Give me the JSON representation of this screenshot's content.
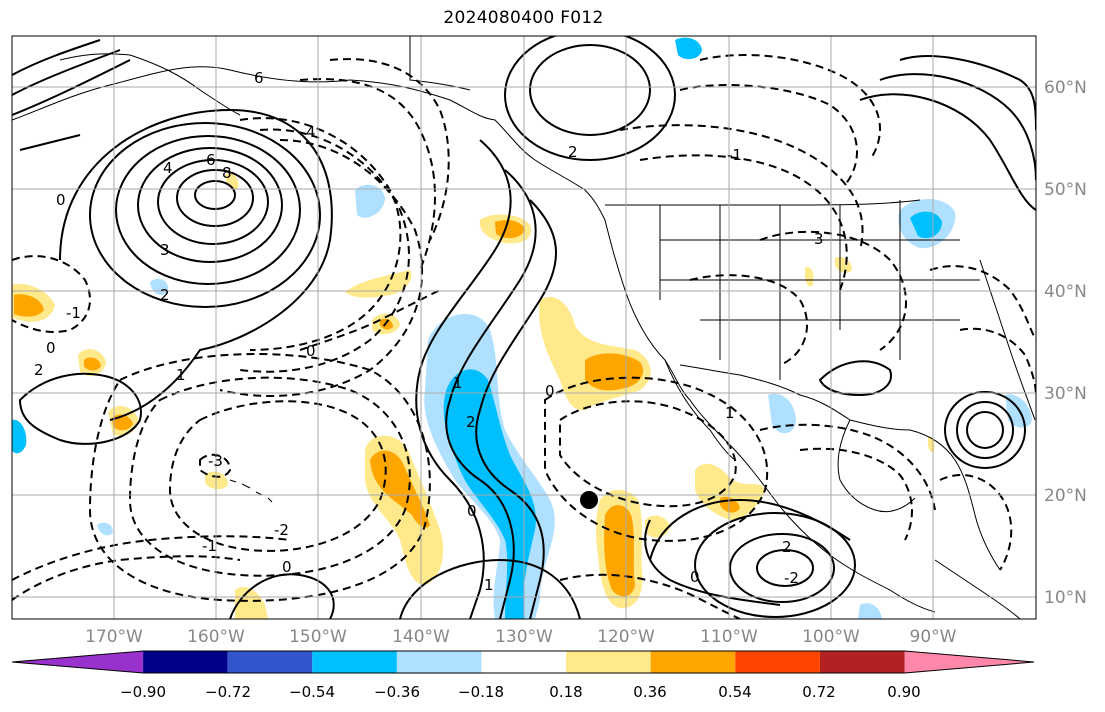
{
  "title": "2024080400 F012",
  "map": {
    "lat_labels": [
      "60°N",
      "50°N",
      "40°N",
      "30°N",
      "20°N",
      "10°N"
    ],
    "lon_labels": [
      "170°W",
      "160°W",
      "150°W",
      "140°W",
      "130°W",
      "120°W",
      "110°W",
      "100°W",
      "90°W"
    ],
    "contour_labels": [
      "6",
      "8",
      "4",
      "3",
      "2",
      "1",
      "0",
      "-1",
      "-2",
      "-3",
      "0",
      "2",
      "1",
      "0",
      "2",
      "0",
      "1",
      "2",
      "0",
      "-2",
      "-1",
      "0",
      "3",
      "2",
      "4",
      "6",
      "0",
      "1",
      "-1"
    ],
    "storm_marker": "storm-center-dot",
    "colors": {
      "contour": "#000000",
      "grid": "#aaaaaa",
      "coast": "#000000",
      "label": "#888888"
    }
  },
  "colorbar": {
    "ticks": [
      "−0.90",
      "−0.72",
      "−0.54",
      "−0.36",
      "−0.18",
      "0.18",
      "0.36",
      "0.54",
      "0.72",
      "0.90"
    ],
    "colors": [
      "#9932cc",
      "#00008b",
      "#3355cc",
      "#00bfff",
      "#b0e0ff",
      "#ffffff",
      "#ffe98a",
      "#ffa500",
      "#ff4500",
      "#b22222",
      "#ff88aa"
    ]
  }
}
